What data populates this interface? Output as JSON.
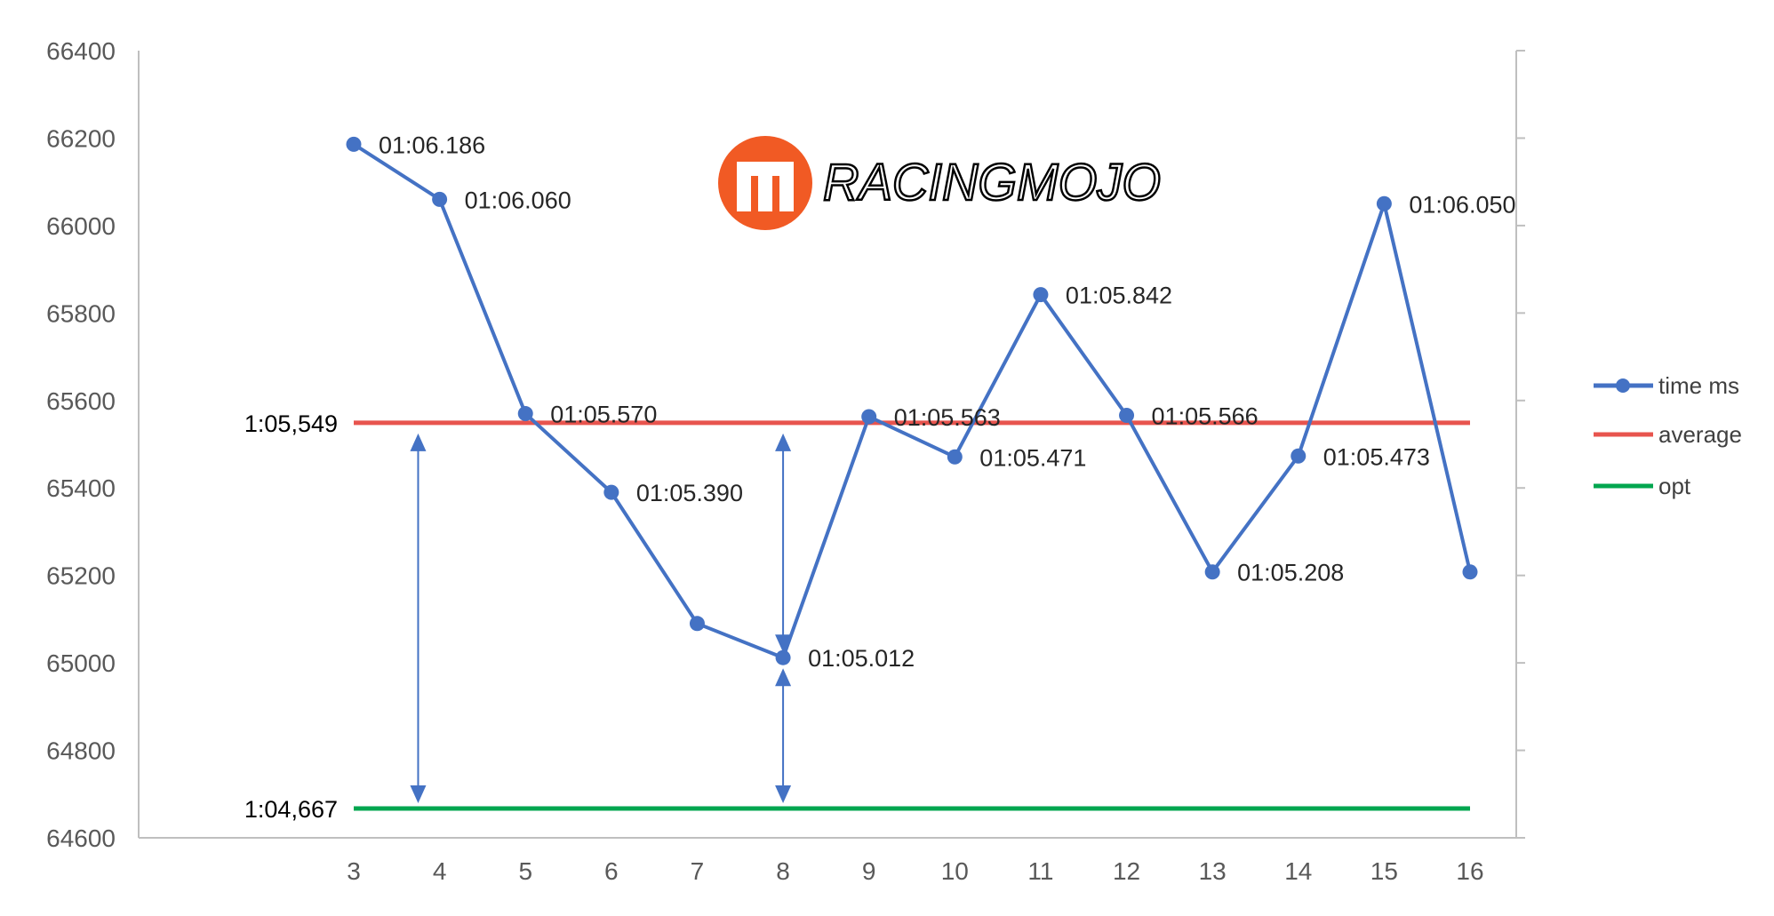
{
  "chart_data": {
    "type": "line",
    "x": [
      3,
      4,
      5,
      6,
      7,
      8,
      9,
      10,
      11,
      12,
      13,
      14,
      15,
      16
    ],
    "series": [
      {
        "name": "time ms",
        "color": "#4472c4",
        "values": [
          66186,
          66060,
          65570,
          65390,
          65090,
          65012,
          65563,
          65471,
          65842,
          65566,
          65208,
          65473,
          66050,
          65208
        ],
        "labels": [
          "01:06.186",
          "01:06.060",
          "01:05.570",
          "01:05.390",
          "",
          "01:05.012",
          "01:05.563",
          "01:05.471",
          "01:05.842",
          "01:05.566",
          "01:05.208",
          "01:05.473",
          "01:06.050",
          ""
        ]
      },
      {
        "name": "average",
        "color": "#e8544e",
        "value": 65549,
        "label": "1:05,549"
      },
      {
        "name": "opt",
        "color": "#00a64f",
        "value": 64667,
        "label": "1:04,667"
      }
    ],
    "yticks": [
      "64600",
      "64800",
      "65000",
      "65200",
      "65400",
      "65600",
      "65800",
      "66000",
      "66200",
      "66400"
    ],
    "ylim": [
      64600,
      66400
    ],
    "xlabel": "",
    "ylabel": "",
    "title": "",
    "legend_position": "right",
    "annotations": [
      {
        "type": "double-arrow",
        "x": 3.75,
        "from": 64667,
        "to": 65549
      },
      {
        "type": "double-arrow",
        "x": 8,
        "from": 65012,
        "to": 65549
      },
      {
        "type": "double-arrow",
        "x": 8,
        "from": 64667,
        "to": 65012
      }
    ]
  },
  "logo": {
    "text": "RACINGMOJO",
    "color": "#f15a24"
  }
}
